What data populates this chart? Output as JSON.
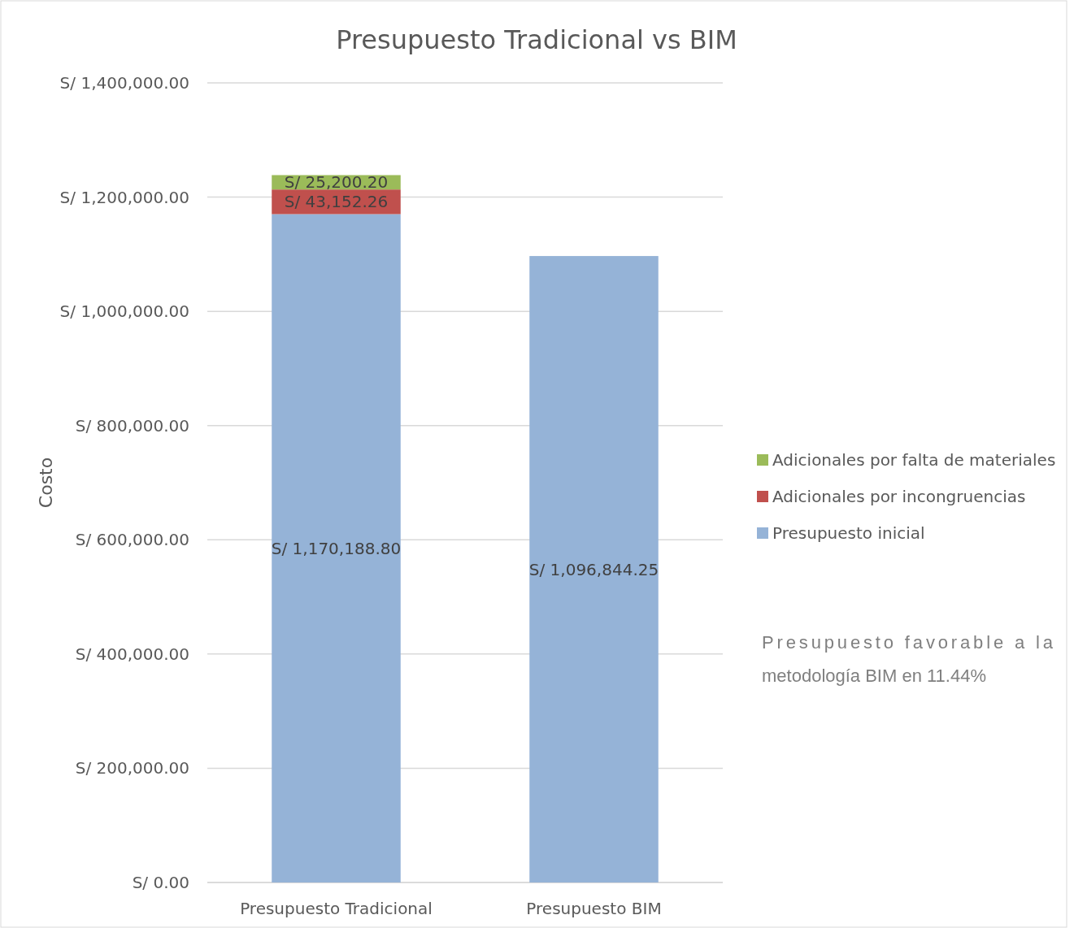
{
  "chart_data": {
    "type": "bar",
    "title": "Presupuesto Tradicional vs BIM",
    "ylabel": "Costo",
    "categories": [
      "Presupuesto Tradicional",
      "Presupuesto BIM"
    ],
    "stacked": true,
    "series": [
      {
        "name": "Presupuesto inicial",
        "color": "#95b3d7",
        "values": [
          1170188.8,
          1096844.25
        ],
        "value_labels": [
          "S/ 1,170,188.80",
          "S/ 1,096,844.25"
        ]
      },
      {
        "name": "Adicionales por incongruencias",
        "color": "#c0504d",
        "values": [
          43152.26,
          null
        ],
        "value_labels": [
          "S/ 43,152.26",
          null
        ]
      },
      {
        "name": "Adicionales por falta de materiales",
        "color": "#9bbb59",
        "values": [
          25200.2,
          null
        ],
        "value_labels": [
          "S/ 25,200.20",
          null
        ]
      }
    ],
    "ylim": [
      0,
      1400000
    ],
    "yticks": [
      {
        "value": 0,
        "label": "S/ 0.00"
      },
      {
        "value": 200000,
        "label": "S/ 200,000.00"
      },
      {
        "value": 400000,
        "label": "S/ 400,000.00"
      },
      {
        "value": 600000,
        "label": "S/ 600,000.00"
      },
      {
        "value": 800000,
        "label": "S/ 800,000.00"
      },
      {
        "value": 1000000,
        "label": "S/ 1,000,000.00"
      },
      {
        "value": 1200000,
        "label": "S/ 1,200,000.00"
      },
      {
        "value": 1400000,
        "label": "S/ 1,400,000.00"
      }
    ],
    "grid": "y",
    "legend": "right",
    "annotations": [
      "Presupuesto favorable a la metodología BIM en 11.44%"
    ]
  }
}
